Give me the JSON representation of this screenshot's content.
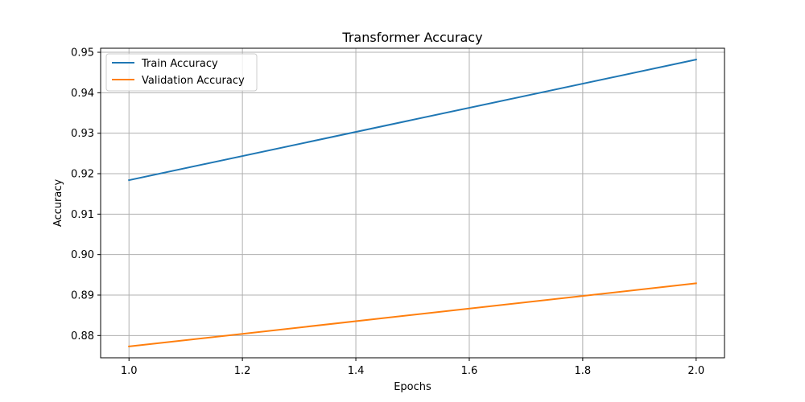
{
  "chart_data": {
    "type": "line",
    "title": "Transformer Accuracy",
    "xlabel": "Epochs",
    "ylabel": "Accuracy",
    "xlim": [
      0.95,
      2.05
    ],
    "ylim": [
      0.8745,
      0.951
    ],
    "xticks": [
      1.0,
      1.2,
      1.4,
      1.6,
      1.8,
      2.0
    ],
    "xtick_labels": [
      "1.0",
      "1.2",
      "1.4",
      "1.6",
      "1.8",
      "2.0"
    ],
    "yticks": [
      0.88,
      0.89,
      0.9,
      0.91,
      0.92,
      0.93,
      0.94,
      0.95
    ],
    "ytick_labels": [
      "0.88",
      "0.89",
      "0.90",
      "0.91",
      "0.92",
      "0.93",
      "0.94",
      "0.95"
    ],
    "grid": true,
    "legend_position": "top-left",
    "x": [
      1,
      2
    ],
    "series": [
      {
        "name": "Train Accuracy",
        "values": [
          0.9184,
          0.9482
        ],
        "color": "#1f77b4"
      },
      {
        "name": "Validation Accuracy",
        "values": [
          0.8773,
          0.8929
        ],
        "color": "#ff7f0e"
      }
    ]
  }
}
